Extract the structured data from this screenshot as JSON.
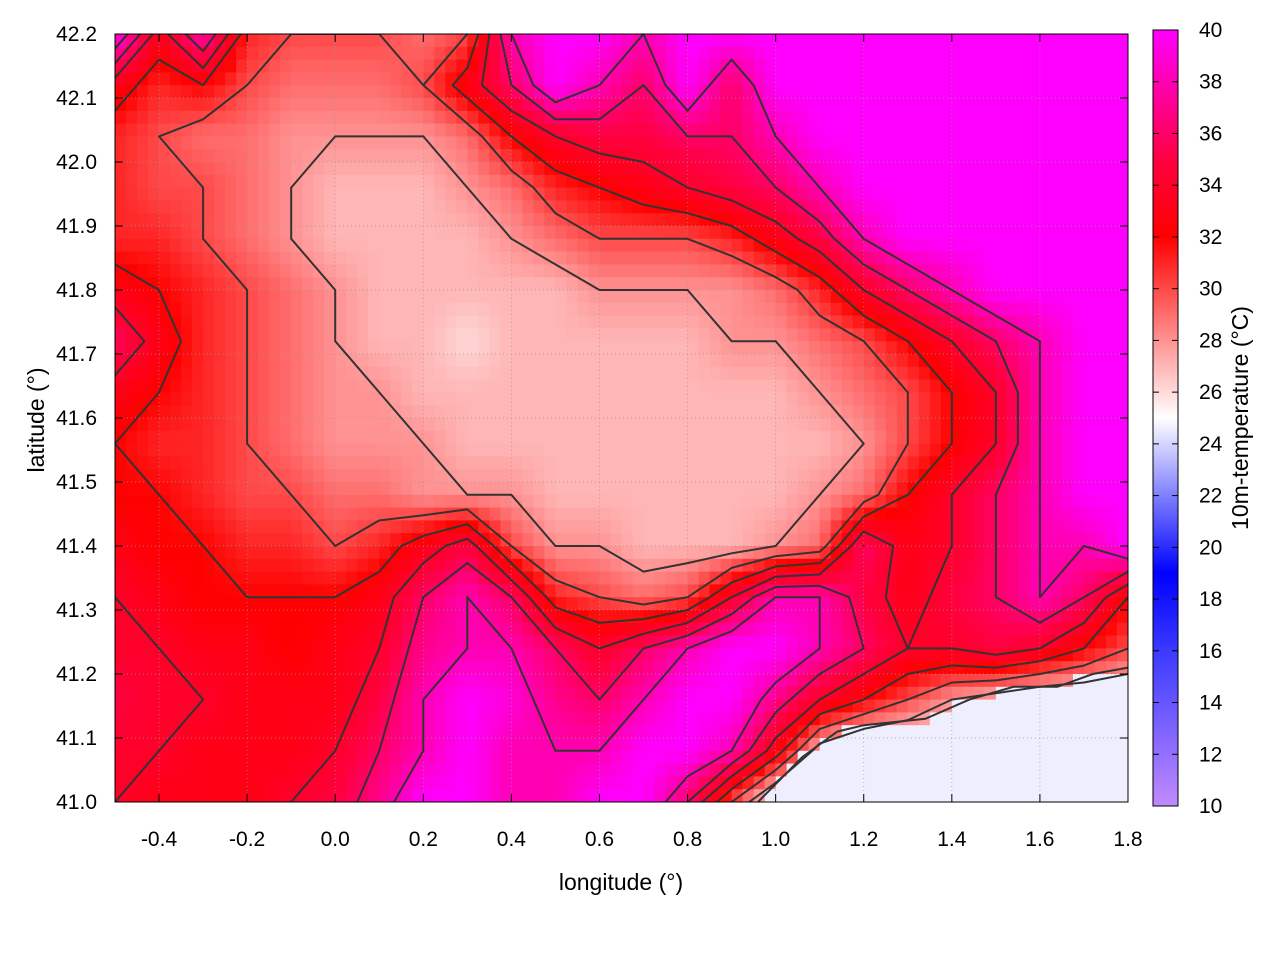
{
  "chart_data": {
    "type": "heatmap",
    "title": "",
    "xlabel": "longitude (°)",
    "ylabel": "latitude (°)",
    "colorbar_label": "10m-temperature (°C)",
    "xlim": [
      -0.5,
      1.8
    ],
    "ylim": [
      41.0,
      42.2
    ],
    "clim": [
      10,
      40
    ],
    "x_ticks": [
      "-0.4",
      "-0.2",
      "0.0",
      "0.2",
      "0.4",
      "0.6",
      "0.8",
      "1.0",
      "1.2",
      "1.4",
      "1.6",
      "1.8"
    ],
    "x_tick_values": [
      -0.4,
      -0.2,
      0.0,
      0.2,
      0.4,
      0.6,
      0.8,
      1.0,
      1.2,
      1.4,
      1.6,
      1.8
    ],
    "y_ticks": [
      "41.0",
      "41.1",
      "41.2",
      "41.3",
      "41.4",
      "41.5",
      "41.6",
      "41.7",
      "41.8",
      "41.9",
      "42.0",
      "42.1",
      "42.2"
    ],
    "y_tick_values": [
      41.0,
      41.1,
      41.2,
      41.3,
      41.4,
      41.5,
      41.6,
      41.7,
      41.8,
      41.9,
      42.0,
      42.1,
      42.2
    ],
    "colorbar_ticks": [
      "10",
      "12",
      "14",
      "16",
      "18",
      "20",
      "22",
      "24",
      "26",
      "28",
      "30",
      "32",
      "34",
      "36",
      "38",
      "40"
    ],
    "colorbar_tick_values": [
      10,
      12,
      14,
      16,
      18,
      20,
      22,
      24,
      26,
      28,
      30,
      32,
      34,
      36,
      38,
      40
    ],
    "colormap": [
      {
        "value": 10,
        "color": "#c08aff"
      },
      {
        "value": 16,
        "color": "#3a3aff"
      },
      {
        "value": 19,
        "color": "#0000ff"
      },
      {
        "value": 25,
        "color": "#ffffff"
      },
      {
        "value": 32,
        "color": "#ff0000"
      },
      {
        "value": 35,
        "color": "#ff0040"
      },
      {
        "value": 40,
        "color": "#ff00ff"
      }
    ],
    "grid": true,
    "contour_color": "#333333",
    "sea_temperature": 24.6,
    "coastline": [
      [
        0.96,
        41.0
      ],
      [
        1.06,
        41.07
      ],
      [
        1.14,
        41.11
      ],
      [
        1.2,
        41.12
      ],
      [
        1.34,
        41.13
      ],
      [
        1.44,
        41.16
      ],
      [
        1.54,
        41.18
      ],
      [
        1.64,
        41.18
      ],
      [
        1.72,
        41.2
      ],
      [
        1.8,
        41.21
      ]
    ],
    "grid_values": [
      [
        40,
        33,
        38,
        31,
        30,
        30,
        30,
        29,
        30,
        38,
        40,
        40,
        38,
        40,
        40,
        40,
        40,
        40,
        40,
        40,
        40,
        40,
        40,
        40
      ],
      [
        33,
        31,
        32,
        30,
        29,
        29,
        29,
        30,
        33,
        36,
        40,
        38,
        36,
        40,
        36,
        40,
        40,
        40,
        40,
        40,
        40,
        40,
        40,
        40
      ],
      [
        31,
        30,
        29,
        29,
        28,
        28,
        28,
        28,
        29,
        32,
        34,
        35,
        35,
        36,
        36,
        38,
        40,
        40,
        40,
        40,
        40,
        40,
        40,
        40
      ],
      [
        31,
        30,
        30,
        29,
        28,
        27,
        27,
        27,
        28,
        29,
        31,
        32,
        33,
        34,
        35,
        36,
        38,
        40,
        40,
        40,
        40,
        40,
        40,
        40
      ],
      [
        31,
        31,
        30,
        29,
        28,
        27,
        27,
        27,
        27,
        28,
        29,
        30,
        30,
        30,
        31,
        33,
        35,
        38,
        40,
        40,
        40,
        40,
        40,
        40
      ],
      [
        33,
        32,
        31,
        30,
        29,
        28,
        27,
        27,
        27,
        27,
        27,
        28,
        28,
        28,
        28,
        29,
        31,
        34,
        36,
        38,
        40,
        40,
        40,
        40
      ],
      [
        36,
        33,
        31,
        30,
        29,
        28,
        27,
        27,
        26,
        27,
        27,
        27,
        27,
        27,
        28,
        28,
        29,
        30,
        32,
        34,
        36,
        38,
        40,
        40
      ],
      [
        33,
        32,
        31,
        30,
        29,
        28,
        28,
        27,
        27,
        27,
        27,
        27,
        27,
        27,
        27,
        27,
        28,
        29,
        30,
        32,
        34,
        38,
        40,
        40
      ],
      [
        32,
        31,
        31,
        30,
        29,
        28,
        28,
        28,
        27,
        27,
        27,
        27,
        27,
        27,
        27,
        27,
        27,
        28,
        30,
        32,
        34,
        38,
        40,
        40
      ],
      [
        32,
        32,
        31,
        30,
        30,
        29,
        29,
        28,
        28,
        28,
        27,
        27,
        27,
        27,
        27,
        27,
        28,
        29,
        32,
        34,
        36,
        38,
        40,
        40
      ],
      [
        33,
        32,
        32,
        31,
        31,
        30,
        31,
        33,
        35,
        30,
        28,
        28,
        27,
        27,
        27,
        28,
        29,
        36,
        33,
        34,
        36,
        38,
        38,
        40
      ],
      [
        34,
        33,
        32,
        32,
        32,
        32,
        33,
        36,
        38,
        36,
        31,
        30,
        29,
        30,
        34,
        38,
        38,
        35,
        33,
        35,
        36,
        38,
        36,
        32
      ],
      [
        34,
        34,
        33,
        33,
        32,
        33,
        34,
        37,
        38,
        38,
        36,
        34,
        36,
        38,
        40,
        40,
        38,
        36,
        34,
        34,
        35,
        34,
        32,
        30
      ],
      [
        35,
        34,
        34,
        33,
        33,
        33,
        35,
        38,
        40,
        39,
        37,
        36,
        38,
        40,
        40,
        37,
        34,
        32,
        30,
        28,
        27,
        26,
        26,
        26
      ],
      [
        34,
        34,
        33,
        33,
        33,
        34,
        36,
        38,
        40,
        38,
        38,
        38,
        40,
        40,
        38,
        33,
        27,
        25,
        25,
        25,
        25,
        25,
        25,
        25
      ],
      [
        34,
        33,
        33,
        33,
        34,
        35,
        37,
        40,
        40,
        38,
        38,
        40,
        40,
        36,
        30,
        25,
        25,
        25,
        25,
        25,
        25,
        25,
        25,
        25
      ]
    ]
  }
}
